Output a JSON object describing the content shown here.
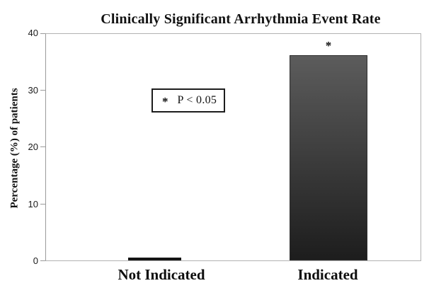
{
  "chart_data": {
    "type": "bar",
    "title": "Clinically Significant Arrhythmia Event Rate",
    "ylabel": "Percentage (%) of patients",
    "xlabel": "",
    "categories": [
      "Not Indicated",
      "Indicated"
    ],
    "values": [
      0.5,
      36
    ],
    "ylim": [
      0,
      40
    ],
    "yticks": [
      0,
      10,
      20,
      30,
      40
    ],
    "grid": false,
    "legend": {
      "marker": "*",
      "label": "P < 0.05",
      "position": "upper-left-inside"
    },
    "annotations": [
      {
        "category": "Indicated",
        "text": "*",
        "meaning": "statistically significant"
      }
    ],
    "colors": {
      "bar_not_indicated": "#141414",
      "bar_indicated_top": "#5c5c5c",
      "bar_indicated_bottom": "#1d1d1d",
      "frame": "#b2b2b2",
      "text": "#111111"
    }
  }
}
